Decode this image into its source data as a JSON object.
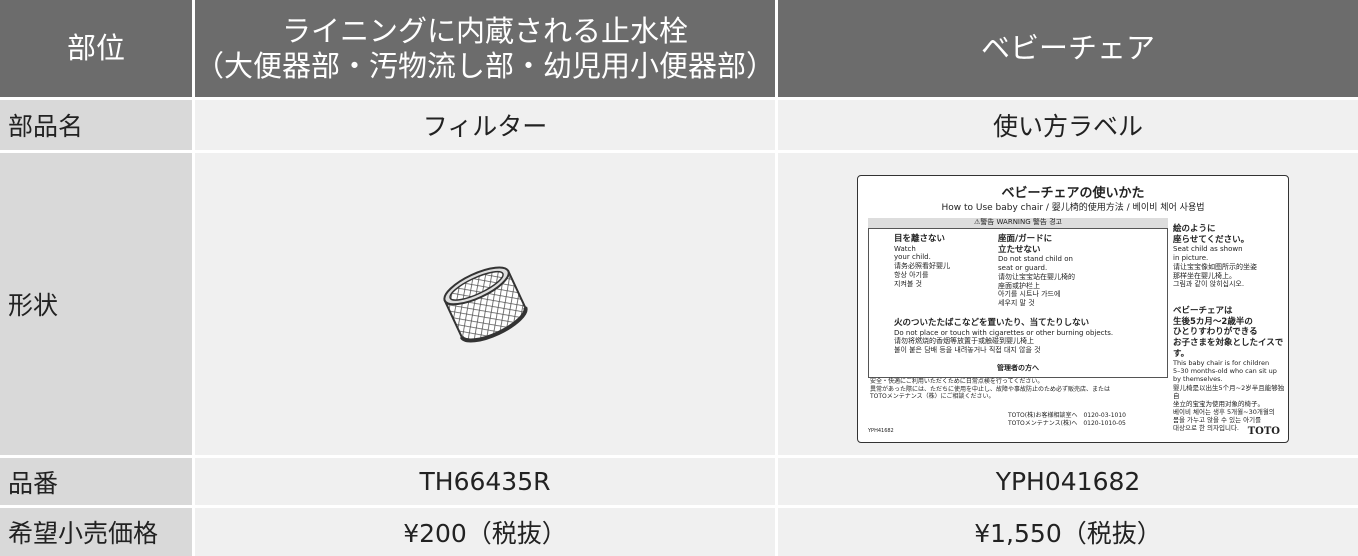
{
  "table": {
    "header": [
      "部位",
      [
        "ライニングに内蔵される止水栓",
        "（大便器部・汚物流し部・幼児用小便器部）"
      ],
      "ベビーチェア"
    ],
    "rows": [
      [
        "部品名",
        "フィルター",
        "使い方ラベル"
      ],
      [
        "形状"
      ],
      [
        "品番",
        "TH66435R",
        "YPH041682"
      ],
      [
        "希望小売価格",
        "¥200（税抜）",
        "¥1,550（税抜）"
      ]
    ]
  },
  "label_image": {
    "title": "ベビーチェアの使いかた",
    "subtitle": "How to Use baby chair / 婴儿椅的使用方法 / 베이비 체어 사용법",
    "warning": "⚠警告 WARNING 警告 경고",
    "watch": [
      "目を離さない",
      "Watch",
      "your child.",
      "请务必照看好婴儿",
      "항상 아기를",
      "지켜볼 것"
    ],
    "stand": [
      "座面/ガードに",
      "立たせない",
      "Do not stand child on",
      "seat or guard.",
      "请勿让宝宝站在婴儿椅的",
      "座面或护栏上",
      "아기를 시트나 가드에",
      "세우지 말 것"
    ],
    "fire": [
      "火のついたたばこなどを置いたり、当てたりしない",
      "Do not place or touch with cigarettes or other burning objects.",
      "请勿将燃烧的香烟等放置于或触碰到婴儿椅上",
      "불이 붙은 담배 등을 내려놓거나 직접 대지 않을 것"
    ],
    "manager": "管理者の方へ",
    "manager_text": [
      "安全・快適にご利用いただくために日常点検を行ってください。",
      "異常があった際には、ただちに使用を中止し、故障や事故防止のため必ず販売店、または",
      "TOTOメンテナンス（株）にご相談ください。"
    ],
    "contact": [
      "TOTO(株)お客様相談室へ　0120-03-1010",
      "TOTOメンテナンス(株)へ　0120-1010-05"
    ],
    "seat": [
      "絵のように",
      "座らせてください。",
      "Seat child as shown",
      "in picture.",
      "请让宝宝像如图所示的坐姿",
      "那样坐在婴儿椅上。",
      "그림과 같이 앉히십시오."
    ],
    "target": [
      "ベビーチェアは",
      "生後5カ月〜2歳半の",
      "ひとりすわりができる",
      "お子さまを対象としたイスです。",
      "This baby chair is for children",
      "5–30 months-old who can sit up",
      "by themselves.",
      "婴儿椅是以出生5个月~2岁半且能够独自",
      "坐立的宝宝为使用对象的椅子。",
      "베이비 체어는 생후 5개월~30개월의",
      "몸을 가누고 앉을 수 있는 아기를",
      "대상으로 한 의자입니다."
    ],
    "code": "YPH41682",
    "brand": "TOTO"
  }
}
